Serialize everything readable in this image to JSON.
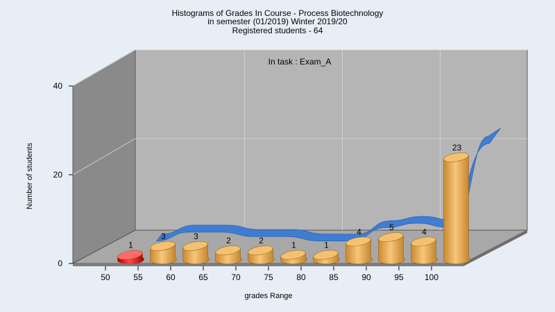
{
  "chart_data": {
    "type": "bar",
    "title": [
      "Histograms of Grades  In Course - Process Biotechnology",
      "in semester  (01/2019) Winter 2019/20",
      "Registered students - 64"
    ],
    "annotation": "In task : Exam_A",
    "xlabel": "grades Range",
    "ylabel": "Number of students",
    "categories": [
      "50",
      "55",
      "60",
      "65",
      "70",
      "75",
      "80",
      "85",
      "90",
      "95",
      "100"
    ],
    "bins": [
      {
        "x": 52.5,
        "value": 1,
        "color": "#e02020"
      },
      {
        "x": 57.5,
        "value": 3,
        "color": "#e8a850"
      },
      {
        "x": 62.5,
        "value": 3,
        "color": "#e8a850"
      },
      {
        "x": 67.5,
        "value": 2,
        "color": "#e8a850"
      },
      {
        "x": 72.5,
        "value": 2,
        "color": "#e8a850"
      },
      {
        "x": 77.5,
        "value": 1,
        "color": "#e8a850"
      },
      {
        "x": 82.5,
        "value": 1,
        "color": "#e8a850"
      },
      {
        "x": 87.5,
        "value": 4,
        "color": "#e8a850"
      },
      {
        "x": 92.5,
        "value": 5,
        "color": "#e8a850"
      },
      {
        "x": 97.5,
        "value": 4,
        "color": "#e8a850"
      },
      {
        "x": 102.5,
        "value": 23,
        "color": "#e8a850"
      }
    ],
    "yticks": [
      0,
      20,
      40
    ],
    "ylim": [
      0,
      40
    ],
    "xlim": [
      45,
      110
    ],
    "trend_ribbon_color": "#3a7bd5",
    "grid": true
  }
}
